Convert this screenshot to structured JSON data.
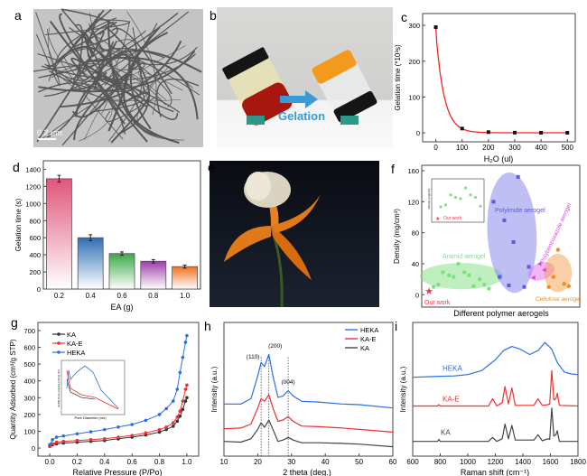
{
  "panel_letters": {
    "a": "a",
    "b": "b",
    "c": "c",
    "d": "d",
    "e": "e",
    "f": "f",
    "g": "g",
    "h": "h",
    "i": "i"
  },
  "panel_a": {
    "scale_bar": "0.2 μm"
  },
  "panel_b": {
    "arrow_label": "Gelation",
    "arrow_color": "#3a9ad9"
  },
  "chart_data": [
    {
      "id": "c",
      "type": "line",
      "xlabel": "H₂O (ul)",
      "ylabel": "Gelation time (*10³s)",
      "xlim": [
        -50,
        530
      ],
      "ylim": [
        -25,
        333
      ],
      "xticks": [
        0,
        100,
        200,
        300,
        400,
        500
      ],
      "yticks": [
        0,
        100,
        200,
        300
      ],
      "x": [
        0,
        100,
        200,
        300,
        400,
        500
      ],
      "y": [
        295,
        12,
        2,
        0.5,
        0.3,
        0.2
      ],
      "line_color": "#ff2020",
      "marker_color": "#111111"
    },
    {
      "id": "d",
      "type": "bar",
      "xlabel": "EA (g)",
      "ylabel": "Gelation time (s)",
      "ylim": [
        0,
        1500
      ],
      "yticks": [
        0,
        200,
        400,
        600,
        800,
        1000,
        1200,
        1400
      ],
      "categories": [
        "0.2",
        "0.4",
        "0.6",
        "0.8",
        "1.0"
      ],
      "values": [
        1290,
        600,
        415,
        325,
        262
      ],
      "errors": [
        40,
        35,
        20,
        20,
        18
      ],
      "colors": [
        "#e0557a",
        "#2f6fb5",
        "#3aa845",
        "#9b3fa8",
        "#f07020"
      ]
    },
    {
      "id": "f",
      "type": "scatter",
      "xlabel": "Different polymer aerogels",
      "ylabel": "Density (mg/cm³)",
      "ylim": [
        -16,
        167
      ],
      "yticks": [
        0,
        40,
        80,
        120,
        160
      ],
      "groups": [
        {
          "name": "Our work",
          "color": "#ff3040",
          "marker": "star",
          "points": [
            [
              3,
              5
            ]
          ]
        },
        {
          "name": "Aramid aerogel",
          "color": "#7fe07f",
          "marker": "circle",
          "points": [
            [
              6,
              10
            ],
            [
              9,
              13
            ],
            [
              12,
              29
            ],
            [
              16,
              25
            ],
            [
              19,
              23
            ],
            [
              22,
              40
            ],
            [
              26,
              29
            ],
            [
              29,
              25
            ],
            [
              32,
              11
            ],
            [
              36,
              20
            ],
            [
              39,
              13
            ],
            [
              42,
              8
            ]
          ]
        },
        {
          "name": "Polyimide aerogel",
          "color": "#5a5ae6",
          "marker": "square",
          "points": [
            [
              45,
              120
            ],
            [
              52,
              96
            ],
            [
              49,
              23
            ],
            [
              55,
              12
            ],
            [
              58,
              68
            ],
            [
              61,
              152
            ],
            [
              65,
              10
            ],
            [
              68,
              36
            ]
          ]
        },
        {
          "name": "Polybenzoxazole aerogel",
          "color": "#e040e0",
          "marker": "triangle",
          "points": [
            [
              75,
              40
            ],
            [
              71,
              22
            ],
            [
              78,
              32
            ]
          ]
        },
        {
          "name": "Cellulose aerogel",
          "color": "#f58a20",
          "marker": "circle",
          "points": [
            [
              81,
              10
            ],
            [
              84,
              23
            ],
            [
              87,
              58
            ],
            [
              91,
              14
            ],
            [
              94,
              11
            ]
          ]
        }
      ],
      "inset": {
        "ylabel": "Density (mg/cm³)",
        "legend": "Our work"
      }
    },
    {
      "id": "g",
      "type": "line",
      "xlabel": "Relative Pressure (P/Po)",
      "ylabel": "Quantity Adsorbed (cm³/g STP)",
      "xlim": [
        -0.086,
        1.086
      ],
      "ylim": [
        -48,
        748
      ],
      "xticks": [
        "0.0",
        "0.2",
        "0.4",
        "0.6",
        "0.8",
        "1.0"
      ],
      "yticks": [
        0,
        100,
        200,
        300,
        400,
        500,
        600,
        700
      ],
      "legend": "top-left",
      "series": [
        {
          "name": "KA",
          "color": "#333333",
          "x": [
            0,
            0.02,
            0.05,
            0.1,
            0.2,
            0.3,
            0.4,
            0.5,
            0.6,
            0.7,
            0.8,
            0.85,
            0.9,
            0.93,
            0.95,
            0.97,
            0.99,
            1.0
          ],
          "y": [
            10,
            20,
            25,
            30,
            35,
            40,
            45,
            55,
            65,
            78,
            95,
            110,
            130,
            160,
            190,
            230,
            280,
            300
          ]
        },
        {
          "name": "KA-E",
          "color": "#f03030",
          "x": [
            0,
            0.02,
            0.05,
            0.1,
            0.2,
            0.3,
            0.4,
            0.5,
            0.6,
            0.7,
            0.8,
            0.85,
            0.9,
            0.93,
            0.95,
            0.97,
            0.99,
            1.0
          ],
          "y": [
            10,
            25,
            35,
            40,
            45,
            50,
            55,
            65,
            75,
            90,
            110,
            125,
            150,
            185,
            220,
            280,
            350,
            375
          ]
        },
        {
          "name": "HEKA",
          "color": "#2a6fe0",
          "x": [
            0,
            0.02,
            0.05,
            0.1,
            0.2,
            0.3,
            0.4,
            0.5,
            0.6,
            0.7,
            0.8,
            0.85,
            0.9,
            0.93,
            0.95,
            0.97,
            0.99,
            1.0
          ],
          "y": [
            20,
            50,
            65,
            72,
            85,
            97,
            110,
            125,
            140,
            165,
            200,
            235,
            280,
            350,
            450,
            540,
            630,
            670
          ]
        }
      ],
      "inset": {
        "xlabel": "Pore Diameter (nm)",
        "ylabel": "dV/dD Pore Volume (cm³/g·nm)"
      }
    },
    {
      "id": "h",
      "type": "line",
      "xlabel": "2 theta (deg.)",
      "ylabel": "Intensity (a.u.)",
      "xlim": [
        10,
        60
      ],
      "ylim": [
        0,
        1
      ],
      "xticks": [
        10,
        20,
        30,
        40,
        50,
        60
      ],
      "legend": "top-right",
      "annotations": [
        {
          "text": "(110)",
          "x": 21
        },
        {
          "text": "(200)",
          "x": 23.3
        },
        {
          "text": "(004)",
          "x": 29
        }
      ],
      "x": [
        10,
        15,
        18,
        20,
        21,
        22,
        23.3,
        24.5,
        26,
        27.5,
        29,
        30.5,
        33,
        38,
        45,
        50,
        60
      ],
      "series": [
        {
          "name": "HEKA",
          "color": "#2a6fe0",
          "y": [
            0.39,
            0.39,
            0.43,
            0.6,
            0.7,
            0.67,
            0.76,
            0.6,
            0.44,
            0.45,
            0.49,
            0.45,
            0.41,
            0.405,
            0.39,
            0.385,
            0.36
          ]
        },
        {
          "name": "KA-E",
          "color": "#f03030",
          "y": [
            0.205,
            0.21,
            0.24,
            0.36,
            0.43,
            0.41,
            0.46,
            0.36,
            0.26,
            0.27,
            0.295,
            0.26,
            0.225,
            0.22,
            0.21,
            0.2,
            0.18
          ]
        },
        {
          "name": "KA",
          "color": "#444444",
          "y": [
            0.11,
            0.105,
            0.13,
            0.2,
            0.25,
            0.215,
            0.27,
            0.2,
            0.11,
            0.12,
            0.14,
            0.12,
            0.1,
            0.1,
            0.095,
            0.09,
            0.07
          ]
        }
      ]
    },
    {
      "id": "i",
      "type": "line",
      "xlabel": "Raman shift (cm⁻¹)",
      "ylabel": "Intensity (a.u.)",
      "xlim": [
        600,
        1800
      ],
      "ylim": [
        0,
        1
      ],
      "xticks": [
        600,
        800,
        1000,
        1200,
        1400,
        1600,
        1800
      ],
      "series": [
        {
          "name": "HEKA",
          "color": "#2a6fe0",
          "x": [
            600,
            750,
            900,
            1000,
            1100,
            1200,
            1260,
            1320,
            1380,
            1450,
            1510,
            1560,
            1610,
            1650,
            1700,
            1750,
            1800
          ],
          "y": [
            0.59,
            0.595,
            0.6,
            0.61,
            0.64,
            0.72,
            0.79,
            0.82,
            0.8,
            0.76,
            0.79,
            0.85,
            0.8,
            0.7,
            0.63,
            0.615,
            0.61
          ]
        },
        {
          "name": "KA-E",
          "color": "#f03030",
          "x": [
            600,
            780,
            790,
            800,
            1150,
            1180,
            1210,
            1250,
            1270,
            1295,
            1320,
            1345,
            1480,
            1510,
            1540,
            1580,
            1595,
            1610,
            1625,
            1640,
            1650,
            1665,
            1800
          ],
          "y": [
            0.375,
            0.375,
            0.385,
            0.375,
            0.375,
            0.43,
            0.375,
            0.4,
            0.52,
            0.39,
            0.51,
            0.38,
            0.38,
            0.43,
            0.38,
            0.385,
            0.39,
            0.64,
            0.42,
            0.43,
            0.47,
            0.38,
            0.375
          ]
        },
        {
          "name": "KA",
          "color": "#444444",
          "x": [
            600,
            780,
            790,
            800,
            1150,
            1180,
            1210,
            1250,
            1270,
            1295,
            1320,
            1345,
            1480,
            1510,
            1540,
            1580,
            1595,
            1610,
            1625,
            1640,
            1650,
            1665,
            1800
          ],
          "y": [
            0.11,
            0.11,
            0.125,
            0.11,
            0.11,
            0.14,
            0.11,
            0.13,
            0.24,
            0.13,
            0.23,
            0.12,
            0.12,
            0.16,
            0.115,
            0.13,
            0.125,
            0.36,
            0.15,
            0.16,
            0.19,
            0.11,
            0.11
          ]
        }
      ]
    }
  ]
}
